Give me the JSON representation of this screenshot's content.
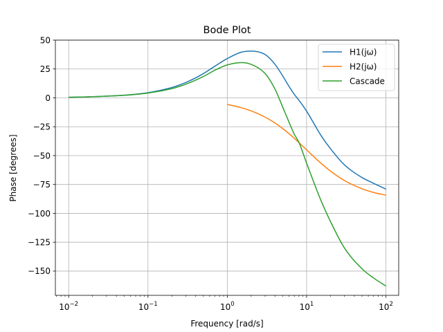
{
  "chart_data": {
    "type": "line",
    "title": "Bode Plot",
    "xlabel": "Frequency [rad/s]",
    "ylabel": "Phase [degrees]",
    "xscale": "log",
    "xlim": [
      0.0068,
      145
    ],
    "ylim": [
      -171,
      50
    ],
    "grid": true,
    "legend_position": "top-right",
    "x_ticks": [
      {
        "value": 0.01,
        "base": "10",
        "exp": "−2"
      },
      {
        "value": 0.1,
        "base": "10",
        "exp": "−1"
      },
      {
        "value": 1,
        "base": "10",
        "exp": "0"
      },
      {
        "value": 10,
        "base": "10",
        "exp": "1"
      },
      {
        "value": 100,
        "base": "10",
        "exp": "2"
      }
    ],
    "y_ticks": [
      {
        "value": 50,
        "label": "50"
      },
      {
        "value": 25,
        "label": "25"
      },
      {
        "value": 0,
        "label": "0"
      },
      {
        "value": -25,
        "label": "−25"
      },
      {
        "value": -50,
        "label": "−50"
      },
      {
        "value": -75,
        "label": "−75"
      },
      {
        "value": -100,
        "label": "−100"
      },
      {
        "value": -125,
        "label": "−125"
      },
      {
        "value": -150,
        "label": "−150"
      }
    ],
    "series": [
      {
        "name": "H1(jω)",
        "color": "#1f77b4",
        "x": [
          0.01,
          0.02,
          0.05,
          0.1,
          0.2,
          0.3,
          0.5,
          0.7,
          1.0,
          1.5,
          2.0,
          3.0,
          4.0,
          5.0,
          6.0,
          7.0,
          8.0,
          10.0,
          15.0,
          20.0,
          30.0,
          50.0,
          70.0,
          100.0
        ],
        "y": [
          0.5,
          1.0,
          2.3,
          4.5,
          9.0,
          13.3,
          21.0,
          27.5,
          34.0,
          39.5,
          40.5,
          37.5,
          29.0,
          19.0,
          10.0,
          3.0,
          -2.0,
          -11.5,
          -32.0,
          -44.0,
          -58.0,
          -69.0,
          -74.0,
          -79.0
        ]
      },
      {
        "name": "H2(jω)",
        "color": "#ff7f0e",
        "x": [
          1.0,
          1.5,
          2.0,
          3.0,
          4.0,
          5.0,
          7.0,
          10.0,
          15.0,
          20.0,
          30.0,
          50.0,
          70.0,
          100.0
        ],
        "y": [
          -5.7,
          -8.5,
          -11.3,
          -16.7,
          -21.8,
          -26.6,
          -35.0,
          -45.0,
          -56.3,
          -63.4,
          -71.6,
          -78.7,
          -81.9,
          -84.3
        ]
      },
      {
        "name": "Cascade",
        "color": "#2ca02c",
        "x": [
          0.01,
          0.02,
          0.05,
          0.1,
          0.2,
          0.3,
          0.5,
          0.7,
          1.0,
          1.5,
          2.0,
          3.0,
          4.0,
          5.0,
          6.0,
          7.0,
          8.0,
          10.0,
          15.0,
          20.0,
          30.0,
          50.0,
          70.0,
          100.0
        ],
        "y": [
          0.5,
          1.0,
          2.2,
          4.2,
          8.0,
          11.8,
          18.5,
          24.0,
          28.5,
          30.5,
          29.0,
          21.0,
          7.5,
          -8.0,
          -21.0,
          -31.5,
          -38.5,
          -56.5,
          -88.0,
          -107.0,
          -130.0,
          -148.0,
          -156.0,
          -163.0
        ]
      }
    ]
  }
}
